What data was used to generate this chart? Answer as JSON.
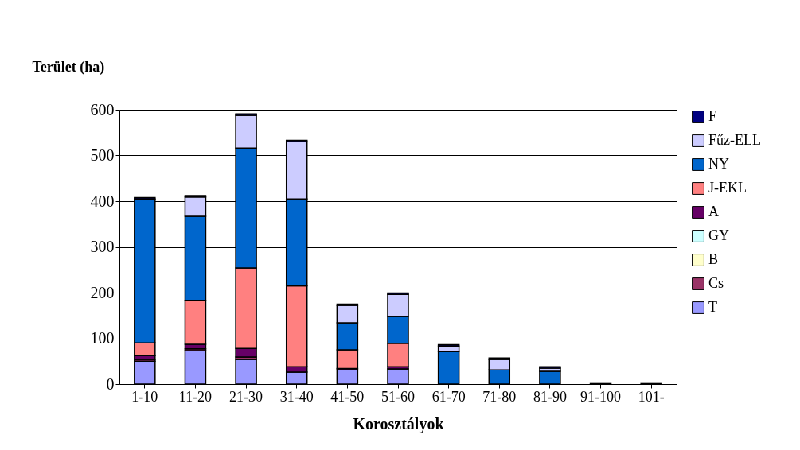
{
  "chart_data": {
    "type": "bar",
    "stacked": true,
    "ylabel": "Terület (ha)",
    "xlabel": "Korosztályok",
    "categories": [
      "1-10",
      "11-20",
      "21-30",
      "31-40",
      "41-50",
      "51-60",
      "61-70",
      "71-80",
      "81-90",
      "91-100",
      "101-"
    ],
    "series": [
      {
        "name": "T",
        "color": "#9999ff",
        "values": [
          50,
          73,
          54,
          26,
          31,
          33,
          null,
          null,
          null,
          1,
          null
        ]
      },
      {
        "name": "Cs",
        "color": "#993366",
        "values": [
          4,
          4,
          5,
          null,
          null,
          null,
          null,
          null,
          null,
          null,
          null
        ]
      },
      {
        "name": "B",
        "color": "#ffffcc",
        "values": [
          null,
          null,
          null,
          null,
          null,
          null,
          null,
          null,
          null,
          null,
          null
        ]
      },
      {
        "name": "GY",
        "color": "#ccffff",
        "values": [
          null,
          null,
          null,
          null,
          null,
          null,
          null,
          null,
          null,
          null,
          null
        ]
      },
      {
        "name": "A",
        "color": "#660066",
        "values": [
          8,
          10,
          19,
          12,
          3,
          5,
          null,
          null,
          null,
          null,
          null
        ]
      },
      {
        "name": "J-EKL",
        "color": "#ff8080",
        "values": [
          28,
          96,
          176,
          177,
          41,
          51,
          null,
          null,
          null,
          null,
          null
        ]
      },
      {
        "name": "NY",
        "color": "#0066cc",
        "values": [
          315,
          184,
          262,
          190,
          59,
          59,
          71,
          31,
          28,
          null,
          null
        ]
      },
      {
        "name": "Fűz-ELL",
        "color": "#ccccff",
        "values": [
          null,
          42,
          72,
          125,
          38,
          48,
          12,
          23,
          7,
          null,
          null
        ]
      },
      {
        "name": "F",
        "color": "#000080",
        "values": [
          3,
          3,
          3,
          3,
          3,
          3,
          3,
          3,
          3,
          null,
          1
        ]
      }
    ],
    "ylim": [
      0,
      600
    ],
    "yticks": [
      0,
      100,
      200,
      300,
      400,
      500,
      600
    ],
    "grid": "y",
    "legend": "right"
  }
}
